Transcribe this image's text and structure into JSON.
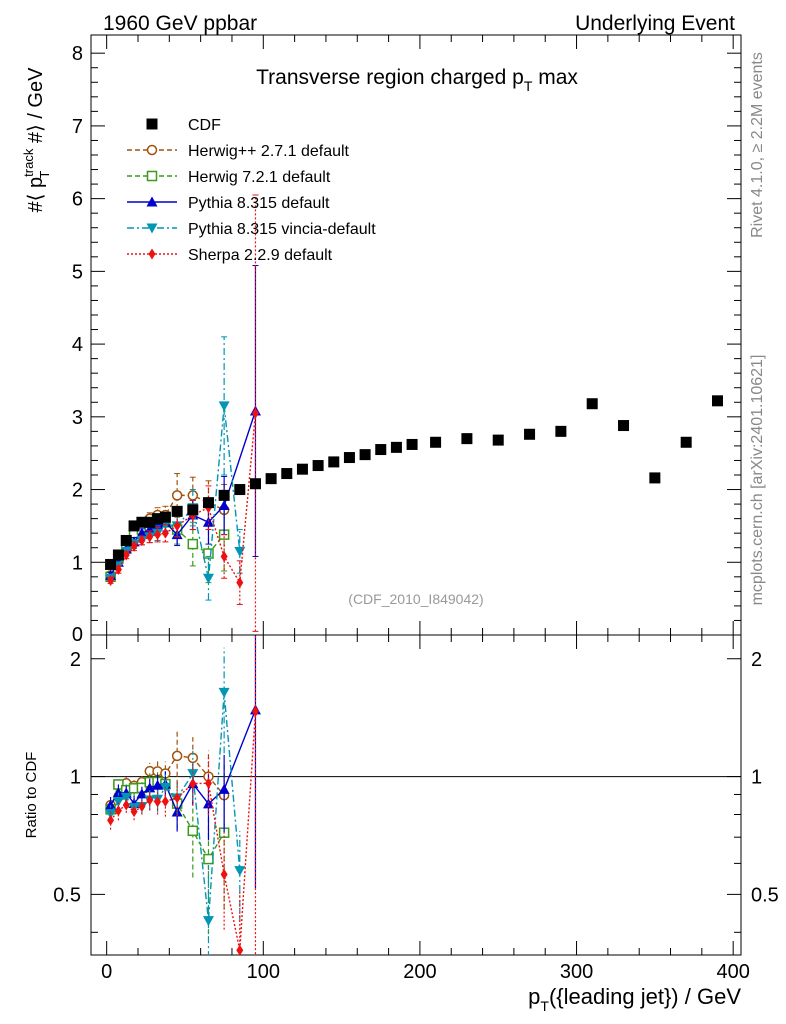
{
  "header": {
    "left": "1960 GeV ppbar",
    "right": "Underlying Event"
  },
  "side_labels": {
    "rivet": "Rivet 4.1.0, ≥ 2.2M events",
    "mcplots": "mcplots.cern.ch [arXiv:2401.10621]"
  },
  "chart_data": {
    "type": "scatter",
    "title_prefix": "Transverse region charged p",
    "title_sub": "T",
    "title_suffix": " max",
    "analysis_id": "(CDF_2010_I849042)",
    "ylabel": {
      "pre": "#⟨ p",
      "sup": "track",
      "sub": "T",
      "post": " #⟩ / GeV"
    },
    "xlabel": {
      "pre": "p",
      "sub": "T",
      "post": "({leading jet}) / GeV"
    },
    "ratio_ylabel": "Ratio to CDF",
    "xlim": [
      -10,
      405
    ],
    "ylim": [
      0,
      8.25
    ],
    "ratio_ylim": [
      0.35,
      2.3
    ],
    "x_ticks": [
      "0",
      "100",
      "200",
      "300",
      "400"
    ],
    "y_ticks": [
      "1",
      "2",
      "3",
      "4",
      "5",
      "6",
      "7",
      "8"
    ],
    "y_zero_label": "0",
    "ratio_ticks": [
      "0.5",
      "1",
      "2"
    ],
    "series": [
      {
        "name": "CDF",
        "color": "#000000",
        "marker": "square-filled",
        "line": "none",
        "x": [
          2.5,
          7.5,
          12.5,
          17.5,
          22.5,
          27.5,
          32.5,
          37.5,
          45,
          55,
          65,
          75,
          85,
          95,
          105,
          115,
          125,
          135,
          145,
          155,
          165,
          175,
          185,
          195,
          210,
          230,
          250,
          270,
          290,
          310,
          330,
          350,
          370,
          390
        ],
        "y": [
          0.97,
          1.1,
          1.3,
          1.5,
          1.55,
          1.55,
          1.6,
          1.62,
          1.7,
          1.72,
          1.82,
          1.92,
          2.0,
          2.08,
          2.15,
          2.22,
          2.28,
          2.33,
          2.38,
          2.44,
          2.48,
          2.55,
          2.58,
          2.62,
          2.65,
          2.7,
          2.68,
          2.76,
          2.8,
          3.18,
          2.88,
          2.16,
          2.65,
          3.22
        ],
        "yerr": [
          0.03,
          0.03,
          0.03,
          0.03,
          0.03,
          0.03,
          0.03,
          0.03,
          0.03,
          0.03,
          0.03,
          0.03,
          0.03,
          0.03,
          0.03,
          0.03,
          0.03,
          0.03,
          0.03,
          0.03,
          0.03,
          0.03,
          0.03,
          0.03,
          0.03,
          0.03,
          0.03,
          0.03,
          0.03,
          0.03,
          0.03,
          0.03,
          0.03,
          0.03
        ]
      },
      {
        "name": "Herwig++ 2.7.1 default",
        "color": "#a0520c",
        "marker": "circle-open",
        "line": "dashed",
        "x": [
          2.5,
          7.5,
          12.5,
          17.5,
          22.5,
          27.5,
          32.5,
          37.5,
          45,
          55,
          65,
          75
        ],
        "y": [
          0.82,
          1.05,
          1.25,
          1.42,
          1.5,
          1.6,
          1.65,
          1.65,
          1.92,
          1.92,
          1.82,
          1.72
        ],
        "yerr": [
          0.04,
          0.05,
          0.05,
          0.06,
          0.06,
          0.08,
          0.1,
          0.12,
          0.3,
          0.25,
          0.3,
          0.35
        ]
      },
      {
        "name": "Herwig 7.2.1 default",
        "color": "#3a9a1a",
        "marker": "square-open",
        "line": "dashed",
        "x": [
          2.5,
          7.5,
          12.5,
          17.5,
          22.5,
          27.5,
          32.5,
          37.5,
          45,
          55,
          65,
          75
        ],
        "y": [
          0.8,
          1.05,
          1.2,
          1.4,
          1.45,
          1.5,
          1.55,
          1.55,
          1.45,
          1.25,
          1.12,
          1.38
        ],
        "yerr": [
          0.04,
          0.05,
          0.05,
          0.06,
          0.06,
          0.08,
          0.1,
          0.12,
          0.2,
          0.3,
          0.4,
          0.5
        ]
      },
      {
        "name": "Pythia 8.315 default",
        "color": "#0000cc",
        "marker": "triangle-up",
        "line": "solid",
        "x": [
          2.5,
          7.5,
          12.5,
          17.5,
          22.5,
          27.5,
          32.5,
          37.5,
          45,
          55,
          65,
          75,
          95
        ],
        "y": [
          0.82,
          1.0,
          1.18,
          1.28,
          1.4,
          1.45,
          1.52,
          1.55,
          1.38,
          1.65,
          1.55,
          1.78,
          3.08
        ],
        "yerr": [
          0.04,
          0.05,
          0.05,
          0.06,
          0.06,
          0.08,
          0.1,
          0.12,
          0.15,
          0.2,
          0.3,
          0.4,
          2.0
        ]
      },
      {
        "name": "Pythia 8.315 vincia-default",
        "color": "#0096b4",
        "marker": "triangle-down",
        "line": "dashdot",
        "x": [
          2.5,
          7.5,
          12.5,
          17.5,
          22.5,
          27.5,
          32.5,
          37.5,
          45,
          55,
          65,
          75,
          85
        ],
        "y": [
          0.78,
          0.95,
          1.15,
          1.25,
          1.3,
          1.35,
          1.4,
          1.52,
          1.5,
          1.75,
          0.78,
          3.15,
          1.15
        ],
        "yerr": [
          0.04,
          0.05,
          0.05,
          0.06,
          0.06,
          0.08,
          0.1,
          0.12,
          0.15,
          0.25,
          0.3,
          0.95,
          0.3
        ]
      },
      {
        "name": "Sherpa 2.2.9 default",
        "color": "#ee1111",
        "marker": "diamond",
        "line": "dotted",
        "x": [
          2.5,
          7.5,
          12.5,
          17.5,
          22.5,
          27.5,
          32.5,
          37.5,
          45,
          55,
          65,
          75,
          85,
          95
        ],
        "y": [
          0.75,
          0.9,
          1.1,
          1.22,
          1.3,
          1.35,
          1.38,
          1.4,
          1.5,
          1.65,
          1.75,
          1.08,
          0.72,
          3.05
        ],
        "yerr": [
          0.04,
          0.05,
          0.05,
          0.06,
          0.06,
          0.08,
          0.1,
          0.12,
          0.15,
          0.2,
          0.3,
          0.3,
          0.3,
          3.0
        ]
      }
    ]
  }
}
